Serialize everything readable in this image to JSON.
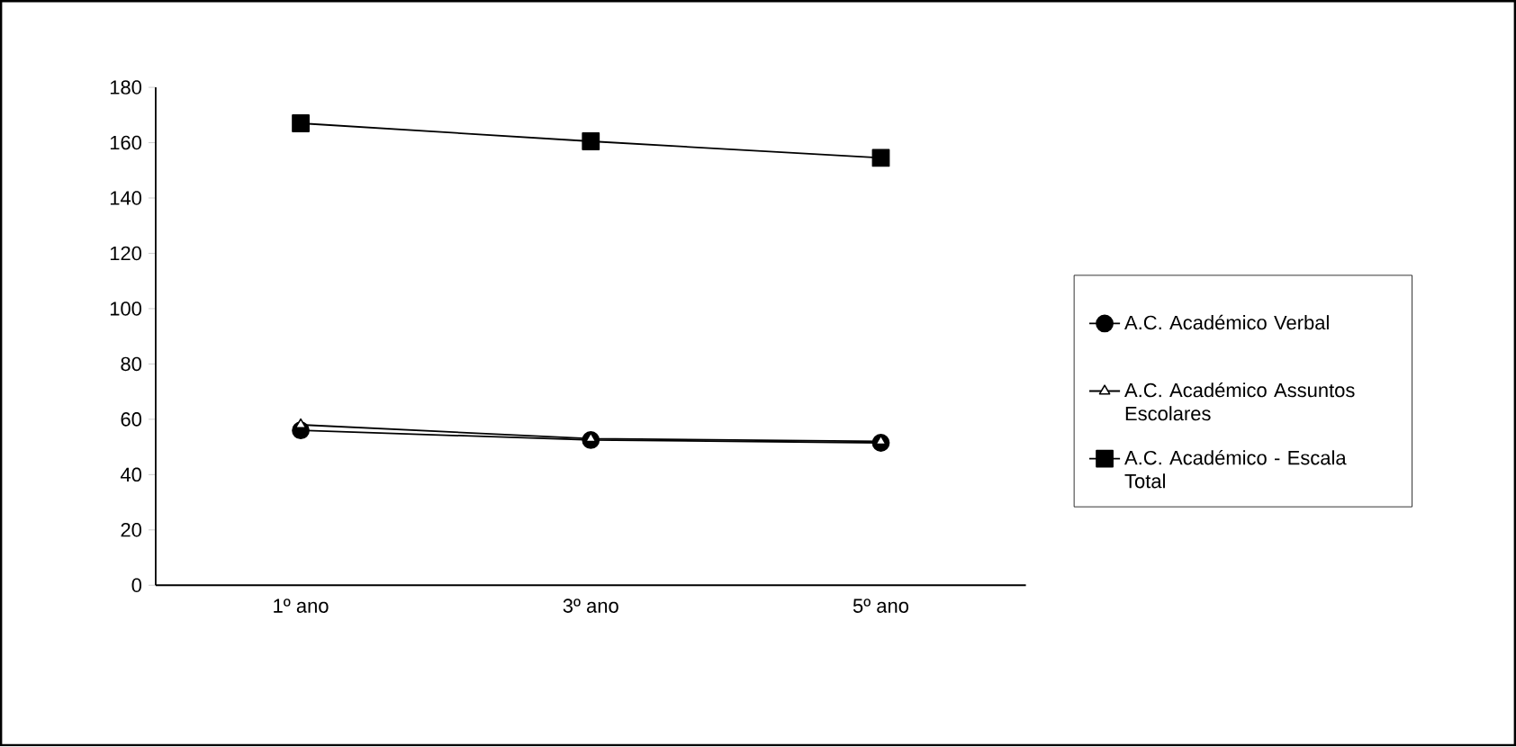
{
  "chart_data": {
    "type": "line",
    "categories": [
      "1º ano",
      "3º ano",
      "5º ano"
    ],
    "series": [
      {
        "name": "A.C. Académico Verbal",
        "color": "#000000",
        "marker": "circle",
        "values": [
          56,
          52.5,
          51.5
        ]
      },
      {
        "name": "A.C. Académico Assuntos Escolares",
        "color": "#000000",
        "marker": "triangle",
        "values": [
          58,
          53,
          52
        ]
      },
      {
        "name": "A.C. Académico - Escala Total",
        "color": "#000000",
        "marker": "square",
        "values": [
          167,
          160.5,
          154.5
        ]
      }
    ],
    "ylim": [
      0,
      180
    ],
    "yticks": [
      0,
      20,
      40,
      60,
      80,
      100,
      120,
      140,
      160,
      180
    ],
    "grid": false,
    "legend": "right",
    "line_style": "solid"
  }
}
